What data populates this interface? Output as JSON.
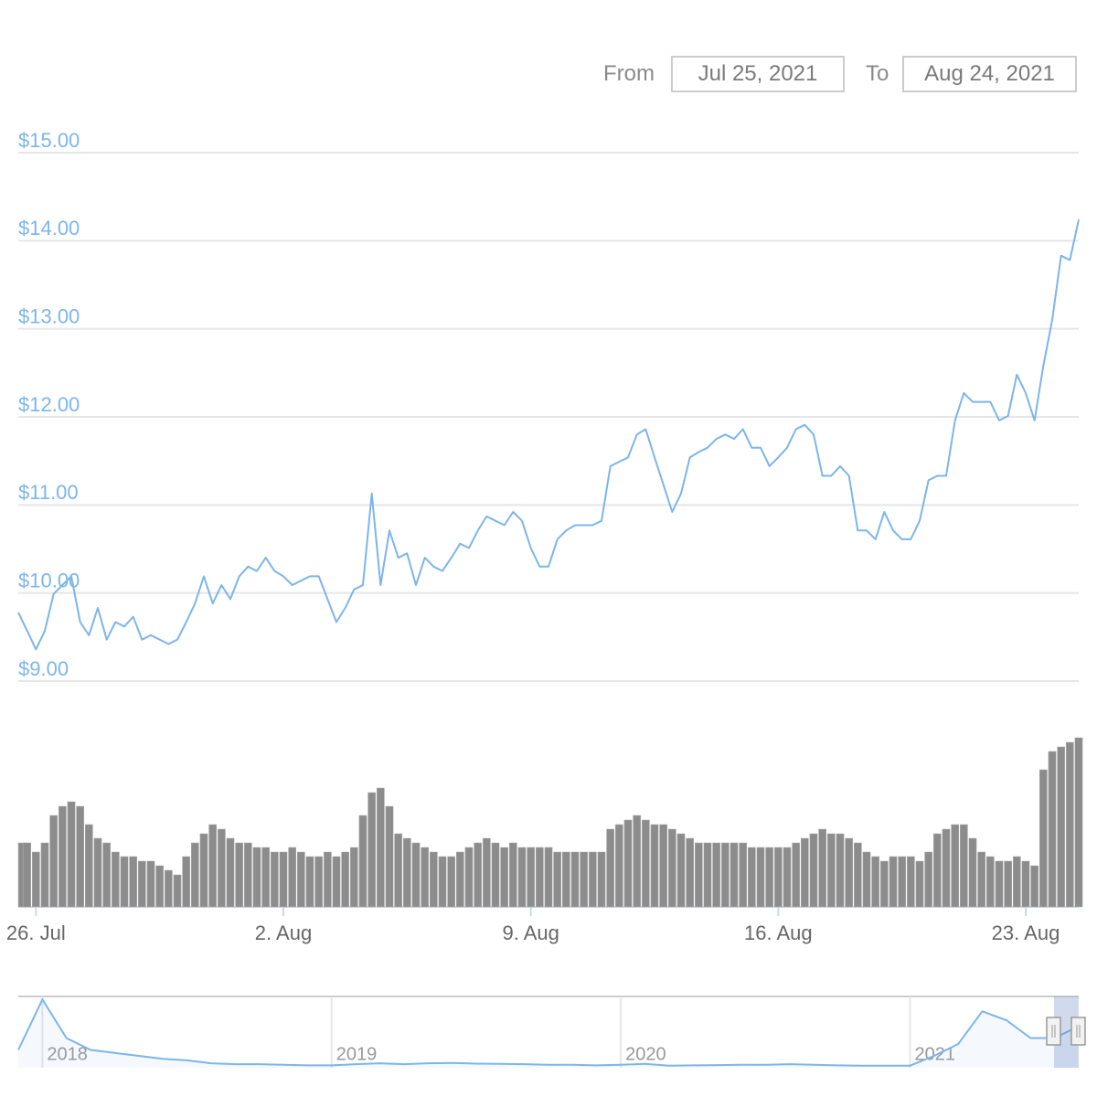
{
  "range_selector": {
    "from_label": "From",
    "from": "Jul 25, 2021",
    "to_label": "To",
    "to": "Aug 24, 2021"
  },
  "chart_data": [
    {
      "type": "line",
      "categories": [
        null,
        null,
        "26. Jul",
        null,
        null,
        null,
        null,
        null,
        null,
        null,
        null,
        null,
        null,
        null,
        null,
        null,
        null,
        null,
        null,
        null,
        null,
        null,
        null,
        null,
        null,
        null,
        null,
        null,
        null,
        null,
        "2. Aug",
        null,
        null,
        null,
        null,
        null,
        null,
        null,
        null,
        null,
        null,
        null,
        null,
        null,
        null,
        null,
        null,
        null,
        null,
        null,
        null,
        null,
        null,
        null,
        null,
        null,
        null,
        null,
        "9. Aug",
        null,
        null,
        null,
        null,
        null,
        null,
        null,
        null,
        null,
        null,
        null,
        null,
        null,
        null,
        null,
        null,
        null,
        null,
        null,
        null,
        null,
        null,
        null,
        null,
        null,
        null,
        null,
        "16. Aug",
        null,
        null,
        null,
        null,
        null,
        null,
        null,
        null,
        null,
        null,
        null,
        null,
        null,
        null,
        null,
        null,
        null,
        null,
        null,
        null,
        null,
        null,
        null,
        null,
        null,
        null,
        null,
        "23. Aug",
        null,
        null,
        null,
        null,
        null,
        null
      ],
      "series": [
        {
          "type": "line",
          "color": "#7cb5ec",
          "values": [
            9.78,
            9.57,
            9.36,
            9.57,
            9.99,
            10.09,
            10.19,
            9.67,
            9.52,
            9.83,
            9.47,
            9.67,
            9.62,
            9.73,
            9.47,
            9.52,
            9.47,
            9.42,
            9.47,
            9.67,
            9.88,
            10.19,
            9.88,
            10.09,
            9.93,
            10.19,
            10.3,
            10.25,
            10.4,
            10.25,
            10.19,
            10.09,
            10.14,
            10.19,
            10.19,
            9.93,
            9.67,
            9.83,
            10.04,
            10.09,
            11.13,
            10.09,
            10.71,
            10.4,
            10.45,
            10.09,
            10.4,
            10.3,
            10.25,
            10.4,
            10.56,
            10.51,
            10.71,
            10.87,
            10.82,
            10.77,
            10.92,
            10.82,
            10.51,
            10.3,
            10.3,
            10.61,
            10.71,
            10.77,
            10.77,
            10.77,
            10.82,
            11.44,
            11.49,
            11.54,
            11.8,
            11.86,
            11.54,
            11.23,
            10.92,
            11.13,
            11.54,
            11.6,
            11.65,
            11.75,
            11.8,
            11.75,
            11.86,
            11.65,
            11.65,
            11.44,
            11.54,
            11.65,
            11.86,
            11.91,
            11.8,
            11.33,
            11.33,
            11.44,
            11.33,
            10.71,
            10.71,
            10.61,
            10.92,
            10.71,
            10.61,
            10.61,
            10.82,
            11.28,
            11.33,
            11.33,
            11.96,
            12.27,
            12.17,
            12.17,
            12.17,
            11.96,
            12.01,
            12.48,
            12.27,
            11.96,
            12.58,
            13.1,
            13.83,
            13.78,
            14.24
          ]
        },
        {
          "type": "bar",
          "axis": "y2",
          "color": "#8c8c8c",
          "values": [
            70,
            70,
            60,
            70,
            100,
            110,
            115,
            110,
            90,
            75,
            70,
            60,
            55,
            55,
            50,
            50,
            45,
            40,
            35,
            55,
            70,
            80,
            90,
            85,
            75,
            70,
            70,
            65,
            65,
            60,
            60,
            65,
            60,
            55,
            55,
            60,
            55,
            60,
            65,
            100,
            125,
            130,
            110,
            80,
            75,
            70,
            65,
            60,
            55,
            55,
            60,
            65,
            70,
            75,
            70,
            65,
            70,
            65,
            65,
            65,
            65,
            60,
            60,
            60,
            60,
            60,
            60,
            85,
            90,
            95,
            100,
            95,
            90,
            90,
            85,
            80,
            75,
            70,
            70,
            70,
            70,
            70,
            70,
            65,
            65,
            65,
            65,
            65,
            70,
            75,
            80,
            85,
            80,
            80,
            75,
            70,
            60,
            55,
            50,
            55,
            55,
            55,
            50,
            60,
            80,
            85,
            90,
            90,
            75,
            60,
            55,
            50,
            50,
            55,
            50,
            45,
            150,
            170,
            175,
            180,
            185
          ]
        }
      ],
      "ylim": [
        9,
        15
      ],
      "yticks": [
        {
          "value": 9,
          "label": "$9.00"
        },
        {
          "value": 10,
          "label": "$10.00"
        },
        {
          "value": 11,
          "label": "$11.00"
        },
        {
          "value": 12,
          "label": "$12.00"
        },
        {
          "value": 13,
          "label": "$13.00"
        },
        {
          "value": 14,
          "label": "$14.00"
        },
        {
          "value": 15,
          "label": "$15.00"
        }
      ],
      "y2lim": [
        0,
        200
      ],
      "grid": true
    },
    {
      "type": "area",
      "categories": [
        null,
        "2018",
        null,
        null,
        null,
        null,
        null,
        null,
        null,
        null,
        null,
        null,
        null,
        "2019",
        null,
        null,
        null,
        null,
        null,
        null,
        null,
        null,
        null,
        null,
        null,
        "2020",
        null,
        null,
        null,
        null,
        null,
        null,
        null,
        null,
        null,
        null,
        null,
        "2021",
        null,
        null,
        null,
        null,
        null,
        null,
        null
      ],
      "values": [
        6,
        23,
        10,
        6,
        5,
        4,
        3,
        2.5,
        1.5,
        1.2,
        1.2,
        1,
        0.8,
        0.8,
        1.2,
        1.5,
        1.2,
        1.5,
        1.6,
        1.4,
        1.3,
        1.2,
        1,
        1,
        0.8,
        1,
        1.3,
        0.7,
        0.8,
        0.9,
        1,
        1,
        1.2,
        1,
        0.8,
        0.7,
        0.7,
        0.7,
        4,
        8,
        19,
        16,
        10,
        10,
        14
      ],
      "color": "#7cb5ec",
      "ylim": [
        0,
        24
      ]
    }
  ]
}
